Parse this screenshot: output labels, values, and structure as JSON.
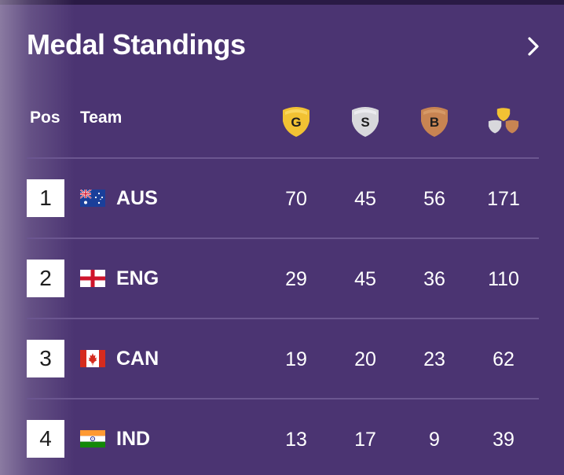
{
  "header": {
    "title": "Medal Standings"
  },
  "columns": {
    "pos": "Pos",
    "team": "Team",
    "gold_letter": "G",
    "silver_letter": "S",
    "bronze_letter": "B"
  },
  "colors": {
    "background": "#4b3472",
    "gold": "#f2c233",
    "silver": "#d8d8dc",
    "bronze": "#c88452"
  },
  "rows": [
    {
      "pos": "1",
      "team": "AUS",
      "flag": "australia-flag-icon",
      "gold": "70",
      "silver": "45",
      "bronze": "56",
      "total": "171"
    },
    {
      "pos": "2",
      "team": "ENG",
      "flag": "england-flag-icon",
      "gold": "29",
      "silver": "45",
      "bronze": "36",
      "total": "110"
    },
    {
      "pos": "3",
      "team": "CAN",
      "flag": "canada-flag-icon",
      "gold": "19",
      "silver": "20",
      "bronze": "23",
      "total": "62"
    },
    {
      "pos": "4",
      "team": "IND",
      "flag": "india-flag-icon",
      "gold": "13",
      "silver": "17",
      "bronze": "9",
      "total": "39"
    }
  ]
}
